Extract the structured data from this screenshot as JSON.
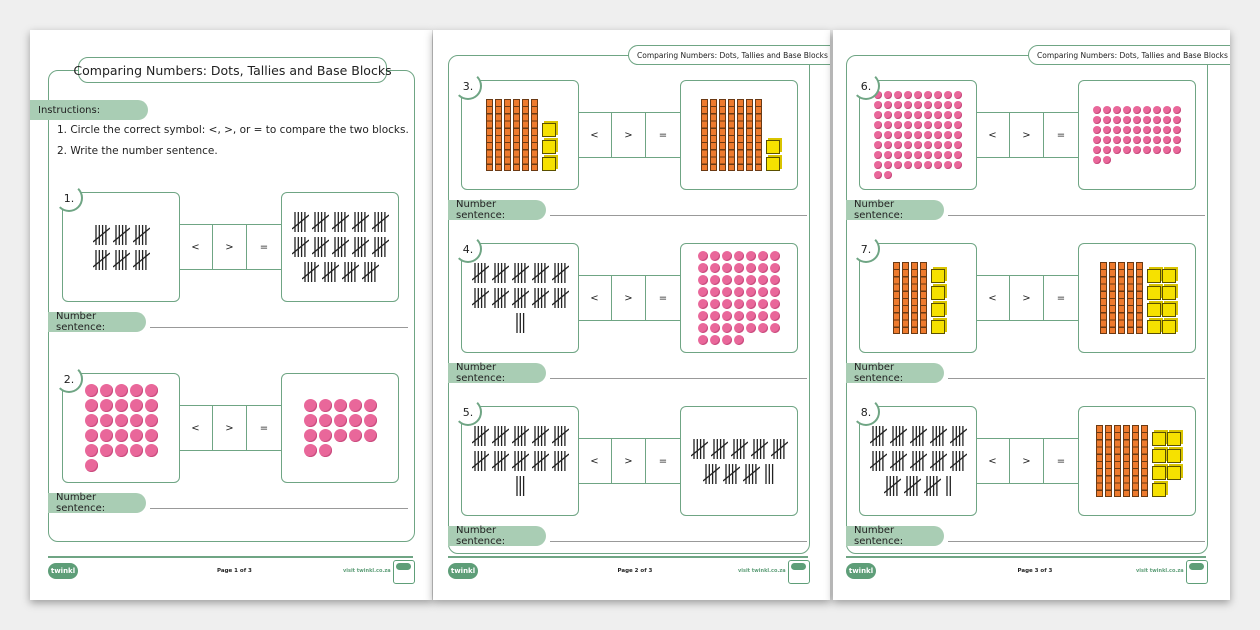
{
  "worksheet_title": "Comparing Numbers: Dots, Tallies and Base Blocks",
  "instructions": {
    "heading": "Instructions:",
    "items": [
      "1.  Circle the correct symbol: <, >, or = to compare the two blocks.",
      "2.  Write the number sentence."
    ]
  },
  "symbols": [
    "<",
    ">",
    "="
  ],
  "number_sentence_label": "Number sentence:",
  "footer": {
    "logo": "twinkl",
    "visit": "visit twinkl.co.za",
    "badge": "quality-standard-badge-icon"
  },
  "colors": {
    "green": "#6fa584",
    "pill": "#a9cdb4",
    "dot": "#e9679a",
    "rod": "#ee7a2d",
    "cube": "#f6e100"
  },
  "pages": [
    {
      "label": "Page 1 of 3",
      "questions": [
        {
          "number": "1.",
          "left": {
            "type": "tally",
            "count": 30
          },
          "right": {
            "type": "tally",
            "count": 70
          }
        },
        {
          "number": "2.",
          "left": {
            "type": "dots",
            "count": 26
          },
          "right": {
            "type": "dots",
            "count": 17
          }
        }
      ]
    },
    {
      "label": "Page 2 of 3",
      "questions": [
        {
          "number": "3.",
          "left": {
            "type": "blocks",
            "tens": 6,
            "ones": 3
          },
          "right": {
            "type": "blocks",
            "tens": 7,
            "ones": 2
          }
        },
        {
          "number": "4.",
          "left": {
            "type": "tally",
            "count": 53
          },
          "right": {
            "type": "dots",
            "count": 53
          }
        },
        {
          "number": "5.",
          "left": {
            "type": "tally",
            "count": 53
          },
          "right": {
            "type": "tally",
            "count": 43
          }
        }
      ]
    },
    {
      "label": "Page 3 of 3",
      "questions": [
        {
          "number": "6.",
          "left": {
            "type": "dots",
            "count": 74
          },
          "right": {
            "type": "dots",
            "count": 47
          }
        },
        {
          "number": "7.",
          "left": {
            "type": "blocks",
            "tens": 4,
            "ones": 4
          },
          "right": {
            "type": "blocks",
            "tens": 5,
            "ones": 8
          }
        },
        {
          "number": "8.",
          "left": {
            "type": "tally",
            "count": 67
          },
          "right": {
            "type": "blocks",
            "tens": 6,
            "ones": 7
          }
        }
      ]
    }
  ]
}
